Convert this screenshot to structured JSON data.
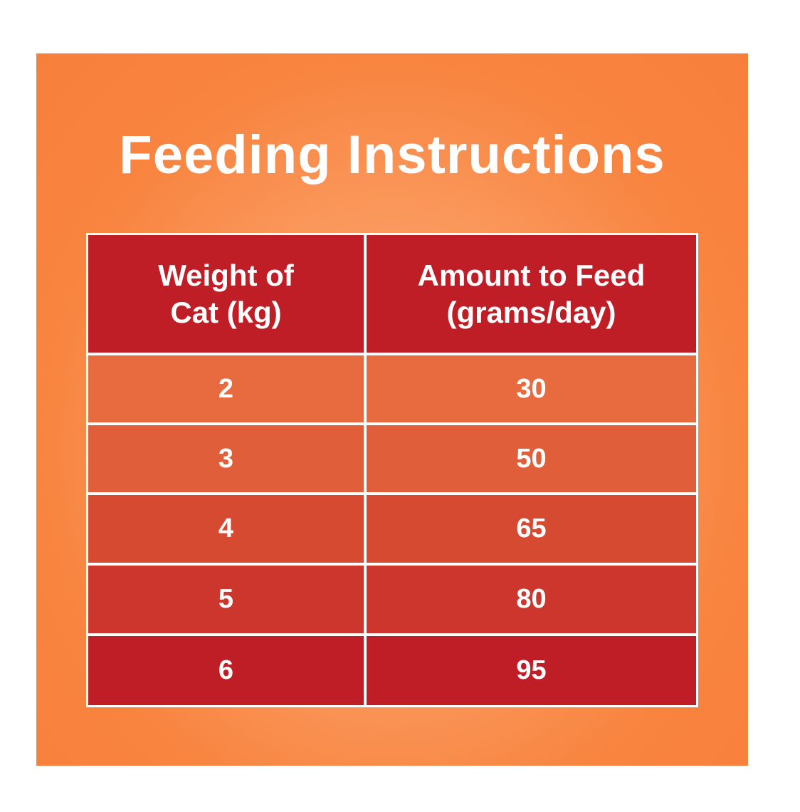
{
  "title": "Feeding Instructions",
  "table": {
    "headers": {
      "weight_line1": "Weight of",
      "weight_line2": "Cat (kg)",
      "amount_line1": "Amount to Feed",
      "amount_line2": "(grams/day)"
    },
    "rows": [
      {
        "weight": "2",
        "amount": "30",
        "color": "#e86b40"
      },
      {
        "weight": "3",
        "amount": "50",
        "color": "#e05e39"
      },
      {
        "weight": "4",
        "amount": "65",
        "color": "#d64a32"
      },
      {
        "weight": "5",
        "amount": "80",
        "color": "#cc362d"
      },
      {
        "weight": "6",
        "amount": "95",
        "color": "#c01e27"
      }
    ]
  },
  "colors": {
    "panel": "#f8843f",
    "header": "#c01e27",
    "border": "#ffffff"
  }
}
